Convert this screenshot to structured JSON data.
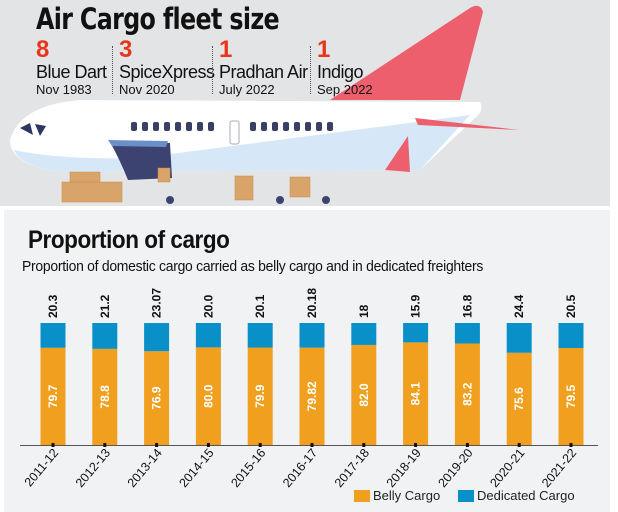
{
  "header": {
    "title": "Air Cargo fleet size",
    "fleet": [
      {
        "count": "8",
        "airline": "Blue Dart",
        "since": "Nov 1983"
      },
      {
        "count": "3",
        "airline": "SpiceXpress",
        "since": "Nov 2020"
      },
      {
        "count": "1",
        "airline": "Pradhan Air",
        "since": "July 2022"
      },
      {
        "count": "1",
        "airline": "Indigo",
        "since": "Sep 2022"
      }
    ]
  },
  "colors": {
    "belly": "#f0a01e",
    "dedicated": "#0a90c8",
    "count": "#e8361c",
    "tail": "#ee5f6e"
  },
  "chart_data": {
    "type": "bar",
    "stacked": true,
    "title": "Proportion of cargo",
    "subtitle": "Proportion of domestic cargo carried as belly cargo and in dedicated freighters",
    "categories": [
      "2011-12",
      "2012-13",
      "2013-14",
      "2014-15",
      "2015-16",
      "2016-17",
      "2017-18",
      "2018-19",
      "2019-20",
      "2020-21",
      "2021-22"
    ],
    "series": [
      {
        "name": "Belly Cargo",
        "values": [
          79.7,
          78.8,
          76.9,
          80.0,
          79.9,
          79.82,
          82.0,
          84.1,
          83.2,
          75.6,
          79.5
        ],
        "labels": [
          "79.7",
          "78.8",
          "76.9",
          "80.0",
          "79.9",
          "79.82",
          "82.0",
          "84.1",
          "83.2",
          "75.6",
          "79.5"
        ]
      },
      {
        "name": "Dedicated Cargo",
        "values": [
          20.3,
          21.2,
          23.07,
          20.0,
          20.1,
          20.18,
          18,
          15.9,
          16.8,
          24.4,
          20.5
        ],
        "labels": [
          "20.3",
          "21.2",
          "23.07",
          "20.0",
          "20.1",
          "20.18",
          "18",
          "15.9",
          "16.8",
          "24.4",
          "20.5"
        ]
      }
    ],
    "ylim": [
      0,
      100
    ],
    "legend": "bottom-right",
    "grid": false
  }
}
